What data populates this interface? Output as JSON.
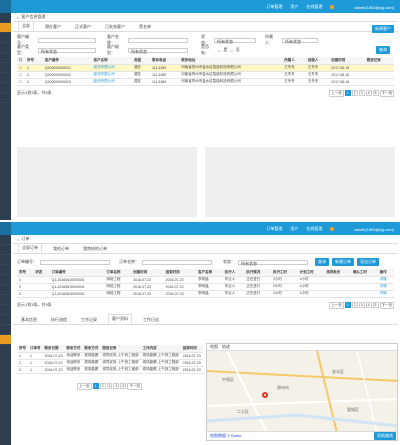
{
  "top1": {
    "items": [
      "订单管理",
      "用户",
      "在线管理"
    ],
    "user": "admin(1800@qq.com)"
  },
  "top2": {
    "items": [
      "订单管理",
      "用户",
      "在线管理"
    ],
    "user": "admin(1800@qq.com)"
  },
  "panel1": {
    "breadcrumb": "客户信息管理",
    "tabs": [
      "全部",
      "潜在客户",
      "正式客户",
      "已失效客户",
      "黑名单"
    ],
    "add_button": "新建客户",
    "filters": [
      {
        "label": "客户编号：",
        "value": ""
      },
      {
        "label": "客户名称：",
        "value": ""
      },
      {
        "label": "状态：",
        "value": "所有状态"
      },
      {
        "label": "所属人：",
        "value": "所有状态"
      },
      {
        "label": "客户类型：",
        "value": "所有状态"
      },
      {
        "label": "客户级别：",
        "value": "所有状态"
      },
      {
        "label": "是否有：",
        "value": ""
      },
      {
        "label": "是",
        "value": ""
      },
      {
        "label": "否",
        "value": ""
      }
    ],
    "search_button": "查询",
    "columns": [
      "",
      "序号",
      "客户编号",
      "客户名称",
      "类型",
      "联系电话",
      "联系地址",
      "所属人",
      "创建人",
      "创建时间",
      "跟进记录"
    ],
    "rows": [
      {
        "no": "1",
        "code": "Q100000000001",
        "name": "欧亚有限公司",
        "type": "潜在",
        "tel": "111.3489",
        "addr": "河南省郑州市金水区智能科技有限公司",
        "owner": "王冬冬",
        "creator": "王冬冬",
        "time": "2017-08-18",
        "hl": true
      },
      {
        "no": "2",
        "code": "Q100000000002",
        "name": "欧亚有限公司",
        "type": "潜在",
        "tel": "111.3489",
        "addr": "河南省郑州市金水区智能科技有限公司",
        "owner": "王冬冬",
        "creator": "王冬冬",
        "time": "2017-08-18",
        "hl": false
      },
      {
        "no": "3",
        "code": "Q100000000003",
        "name": "欧亚有限公司",
        "type": "潜在",
        "tel": "111.3489",
        "addr": "河南省郑州市金水区智能科技有限公司",
        "owner": "王冬冬",
        "creator": "王冬冬",
        "time": "2017-08-18",
        "hl": false
      }
    ],
    "summary": "显示1到3条，共3条",
    "pager": {
      "prev": "上一页",
      "pages": [
        "1",
        "2",
        "3",
        "4",
        "5"
      ],
      "next": "下一页"
    }
  },
  "panel2": {
    "breadcrumb": "订单",
    "tabs": [
      "全部订单",
      "我的订单",
      "我审核的订单"
    ],
    "filter1_label": "订单编号：",
    "filter2_label": "订单名称：",
    "filter3_label": "状态：",
    "status_value": "所有状态",
    "search_button": "查询",
    "add_button": "新建订单",
    "export_button": "导出订单",
    "columns": [
      "序号",
      "状态",
      "订单编号",
      "订单名称",
      "创建时间",
      "结束时间",
      "客户名称",
      "执行人",
      "执行情况",
      "执行工时",
      "计划工时",
      "领导批示",
      "确认工时",
      "操作"
    ],
    "rows": [
      {
        "no": "1",
        "code": "Q1-20160815000001",
        "name": "网络工程",
        "start": "2016-07-23",
        "end": "2016-07-23",
        "cust": "李阿猛",
        "exec": "毕业人",
        "cond": "正在进行",
        "hrs": "2小时",
        "plan": "4小时",
        "lead": "",
        "conf": "",
        "op": "详情"
      },
      {
        "no": "2",
        "code": "Q1-20160815000001",
        "name": "网络工程",
        "start": "2016-07-23",
        "end": "2016-07-23",
        "cust": "李阿猛",
        "exec": "毕业人",
        "cond": "正在进行",
        "hrs": "2小时",
        "plan": "4小时",
        "lead": "",
        "conf": "",
        "op": "详情"
      },
      {
        "no": "3",
        "code": "Q1-20160815000001",
        "name": "网络工程",
        "start": "2016-07-23",
        "end": "2016-07-23",
        "cust": "李阿猛",
        "exec": "毕业人",
        "cond": "正在进行",
        "hrs": "2小时",
        "plan": "4小时",
        "lead": "",
        "conf": "",
        "op": "详情"
      }
    ],
    "summary": "显示1到3条，共3条",
    "pager": {
      "prev": "上一页",
      "pages": [
        "1",
        "2",
        "3",
        "4",
        "5"
      ],
      "next": "下一页"
    },
    "subtabs": [
      "基本信息",
      "执行流程",
      "工作记录",
      "客户资料",
      "工作日志"
    ],
    "sub_columns": [
      "序号",
      "订单号",
      "联系日期",
      "联系方式",
      "联系方式",
      "跟进记录",
      "工作内容",
      "结束时间"
    ],
    "sub_rows": [
      {
        "no": "1",
        "a": "1",
        "date": "2016-07-23",
        "way": "电话联系",
        "contact": "现场勘察",
        "rec": "领导安排-上午到工程部",
        "work": "现场勘察-上午到工程部",
        "end": "2016-07-23"
      },
      {
        "no": "2",
        "a": "1",
        "date": "2016-07-23",
        "way": "电话联系",
        "contact": "现场勘察",
        "rec": "领导安排-上午到工程部",
        "work": "现场勘察-上午到工程部",
        "end": "2016-07-23"
      },
      {
        "no": "3",
        "a": "1",
        "date": "2016-07-23",
        "way": "电话联系",
        "contact": "现场勘察",
        "rec": "领导安排-上午到工程部",
        "work": "现场勘察-上午到工程部",
        "end": "2016-07-23"
      }
    ],
    "sub_pager": {
      "prev": "上一页",
      "pages": [
        "1",
        "2",
        "3",
        "4",
        "5"
      ],
      "next": "下一页"
    },
    "map_tabs": [
      "地图",
      "轨迹"
    ],
    "map_footer_left": "地图数据 © Baidu",
    "map_footer_btn": "导航路线",
    "map_labels": [
      "郑州市",
      "金水区",
      "二七区",
      "中原区",
      "管城区"
    ]
  }
}
